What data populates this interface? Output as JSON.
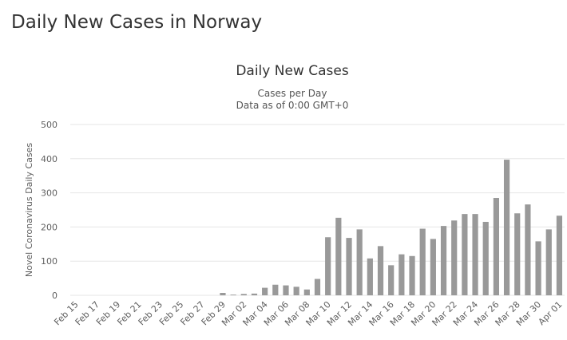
{
  "header": {
    "title": "Daily New Cases in Norway"
  },
  "chart_data": {
    "type": "bar",
    "title": "Daily New Cases",
    "subtitle": [
      "Cases per Day",
      "Data as of 0:00 GMT+0"
    ],
    "y_label": "Novel Coronavirus Daily Cases",
    "categories": [
      "Feb 15",
      null,
      "Feb 17",
      null,
      "Feb 19",
      null,
      "Feb 21",
      null,
      "Feb 23",
      null,
      "Feb 25",
      null,
      "Feb 27",
      null,
      "Feb 29",
      null,
      "Mar 02",
      null,
      "Mar 04",
      null,
      "Mar 06",
      null,
      "Mar 08",
      null,
      "Mar 10",
      null,
      "Mar 12",
      null,
      "Mar 14",
      null,
      "Mar 16",
      null,
      "Mar 18",
      null,
      "Mar 20",
      null,
      "Mar 22",
      null,
      "Mar 24",
      null,
      "Mar 26",
      null,
      "Mar 28",
      null,
      "Mar 30",
      null,
      "Apr 01"
    ],
    "values": [
      0,
      0,
      0,
      0,
      0,
      0,
      0,
      0,
      0,
      0,
      0,
      0,
      0,
      0,
      7,
      2,
      4,
      5,
      22,
      31,
      29,
      25,
      17,
      48,
      170,
      227,
      168,
      193,
      108,
      144,
      88,
      120,
      115,
      195,
      165,
      203,
      219,
      238,
      238,
      215,
      285,
      397,
      240,
      266,
      158,
      193,
      233
    ],
    "color": "#999999",
    "ylim": [
      0,
      500
    ],
    "yticks": [
      0,
      100,
      200,
      300,
      400,
      500
    ],
    "grid": true
  }
}
